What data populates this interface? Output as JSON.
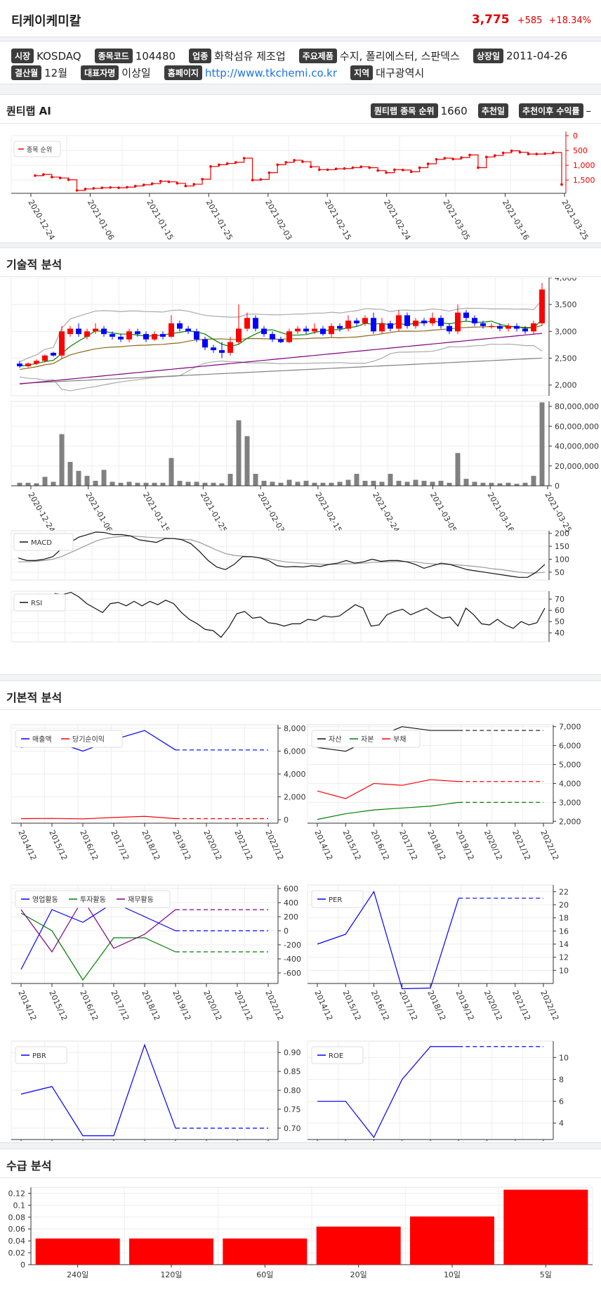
{
  "company": {
    "name": "티케이케미칼",
    "price": "3,775",
    "change": "+585",
    "change_pct": "+18.34%"
  },
  "info": {
    "market_label": "시장",
    "market": "KOSDAQ",
    "code_label": "종목코드",
    "code": "104480",
    "industry_label": "업종",
    "industry": "화학섬유 제조업",
    "products_label": "주요제품",
    "products": "수지, 폴리에스터, 스판덱스",
    "listed_label": "상장일",
    "listed": "2011-04-26",
    "fiscal_label": "결산월",
    "fiscal": "12월",
    "ceo_label": "대표자명",
    "ceo": "이상일",
    "homepage_label": "홈페이지",
    "homepage": "http://www.tkchemi.co.kr",
    "region_label": "지역",
    "region": "대구광역시"
  },
  "ai": {
    "title": "퀀티랩 AI",
    "rank_label": "퀀티랩 종목 순위",
    "rank": "1660",
    "rec_date_label": "추천일",
    "return_label": "추천이후 수익률",
    "return": "–"
  },
  "sections": {
    "tech": "기술적 분석",
    "fund": "기본적 분석",
    "supply": "수급 분석"
  },
  "colors": {
    "up": "#ff0000",
    "down": "#0000ff",
    "ma5": "#008000",
    "ma20": "#8b6914",
    "ma60": "#800080",
    "ma120": "#808080",
    "bars": "#808080"
  },
  "date_ticks": [
    "2020-12-24",
    "2021-01-06",
    "2021-01-15",
    "2021-01-25",
    "2021-02-03",
    "2021-02-15",
    "2021-02-24",
    "2021-03-05",
    "2021-03-16",
    "2021-03-25"
  ],
  "chart_data": [
    {
      "type": "line",
      "legend": "종목 순위",
      "y_ticks": [
        "0",
        "500",
        "1,000",
        "1,500"
      ],
      "ylim": [
        0,
        1900
      ],
      "inverted": true,
      "values": [
        1350,
        1310,
        1400,
        1430,
        1490,
        1850,
        1800,
        1780,
        1760,
        1750,
        1760,
        1740,
        1700,
        1660,
        1620,
        1540,
        1560,
        1610,
        1700,
        1640,
        1470,
        1040,
        980,
        940,
        900,
        760,
        1500,
        1480,
        1250,
        980,
        900,
        830,
        880,
        1050,
        1150,
        1150,
        1120,
        1110,
        1080,
        1050,
        1080,
        1180,
        1250,
        1150,
        1160,
        1220,
        1080,
        950,
        800,
        760,
        790,
        740,
        650,
        1080,
        720,
        670,
        580,
        510,
        560,
        620,
        620,
        610,
        570,
        1650
      ]
    },
    {
      "type": "candlestick",
      "y_ticks": [
        "4,000",
        "3,500",
        "3,000",
        "2,500",
        "2,000"
      ],
      "ylim": [
        1800,
        4000
      ],
      "candles": [
        [
          2400,
          2350,
          2450,
          2320
        ],
        [
          2350,
          2400,
          2420,
          2330
        ],
        [
          2400,
          2450,
          2480,
          2370
        ],
        [
          2450,
          2550,
          2570,
          2420
        ],
        [
          2600,
          2550,
          2620,
          2530
        ],
        [
          2550,
          3000,
          3100,
          2500
        ],
        [
          2950,
          3050,
          3100,
          2900
        ],
        [
          3050,
          2950,
          3150,
          2900
        ],
        [
          2900,
          3000,
          3050,
          2850
        ],
        [
          3000,
          3050,
          3150,
          2950
        ],
        [
          3050,
          2950,
          3100,
          2900
        ],
        [
          2950,
          2900,
          3000,
          2850
        ],
        [
          2900,
          2850,
          2950,
          2800
        ],
        [
          2850,
          3000,
          3050,
          2800
        ],
        [
          3000,
          2950,
          3050,
          2900
        ],
        [
          2950,
          2850,
          3000,
          2800
        ],
        [
          2850,
          2950,
          3000,
          2820
        ],
        [
          2950,
          2900,
          3000,
          2850
        ],
        [
          2900,
          3150,
          3300,
          2880
        ],
        [
          3150,
          3050,
          3200,
          3000
        ],
        [
          3050,
          3000,
          3100,
          2950
        ],
        [
          3000,
          2850,
          3050,
          2800
        ],
        [
          2850,
          2700,
          2900,
          2650
        ],
        [
          2700,
          2650,
          2750,
          2600
        ],
        [
          2650,
          2600,
          2800,
          2500
        ],
        [
          2600,
          2800,
          2900,
          2550
        ],
        [
          2800,
          3050,
          3500,
          2750
        ],
        [
          3050,
          3250,
          3350,
          3000
        ],
        [
          3250,
          3050,
          3300,
          3000
        ],
        [
          3050,
          2950,
          3100,
          2900
        ],
        [
          2950,
          2850,
          3000,
          2800
        ],
        [
          2850,
          2800,
          2900,
          2780
        ],
        [
          2800,
          3000,
          3050,
          2780
        ],
        [
          3000,
          3050,
          3100,
          2950
        ],
        [
          3050,
          3000,
          3100,
          2950
        ],
        [
          3000,
          3050,
          3150,
          2950
        ],
        [
          3050,
          2950,
          3100,
          2920
        ],
        [
          2950,
          3100,
          3150,
          2900
        ],
        [
          3100,
          3050,
          3150,
          3000
        ],
        [
          3050,
          3200,
          3300,
          3000
        ],
        [
          3200,
          3150,
          3250,
          3100
        ],
        [
          3150,
          3250,
          3300,
          3100
        ],
        [
          3250,
          3000,
          3350,
          2950
        ],
        [
          3000,
          3150,
          3250,
          2950
        ],
        [
          3150,
          3050,
          3200,
          3000
        ],
        [
          3050,
          3300,
          3400,
          3000
        ],
        [
          3300,
          3100,
          3350,
          3050
        ],
        [
          3100,
          3200,
          3250,
          3050
        ],
        [
          3200,
          3150,
          3250,
          3100
        ],
        [
          3150,
          3250,
          3350,
          3100
        ],
        [
          3250,
          3100,
          3300,
          3050
        ],
        [
          3100,
          3000,
          3150,
          2950
        ],
        [
          3000,
          3350,
          3500,
          2950
        ],
        [
          3350,
          3250,
          3400,
          3200
        ],
        [
          3250,
          3150,
          3300,
          3100
        ],
        [
          3150,
          3100,
          3200,
          3050
        ],
        [
          3100,
          3100,
          3150,
          3050
        ],
        [
          3100,
          3050,
          3150,
          3000
        ],
        [
          3050,
          3100,
          3150,
          3000
        ],
        [
          3100,
          3050,
          3150,
          3000
        ],
        [
          3050,
          3000,
          3100,
          2950
        ],
        [
          3000,
          3150,
          3200,
          2950
        ],
        [
          3150,
          3780,
          3900,
          3100
        ]
      ]
    },
    {
      "type": "bar",
      "y_ticks": [
        "80,000,000",
        "60,000,000",
        "40,000,000",
        "20,000,000",
        "0"
      ],
      "ylim": [
        0,
        85000000
      ],
      "values": [
        3000000,
        3000000,
        2500000,
        9000000,
        4000000,
        52000000,
        24000000,
        15000000,
        10000000,
        5000000,
        16000000,
        4000000,
        3000000,
        4000000,
        3000000,
        3000000,
        3000000,
        3000000,
        28000000,
        5000000,
        4000000,
        4000000,
        3000000,
        3000000,
        2500000,
        12000000,
        66000000,
        50000000,
        12000000,
        5000000,
        4000000,
        3000000,
        6000000,
        4000000,
        5000000,
        3000000,
        3000000,
        3000000,
        4000000,
        6000000,
        12000000,
        5000000,
        5000000,
        4000000,
        12000000,
        5000000,
        4000000,
        6000000,
        5000000,
        4000000,
        5000000,
        3000000,
        33000000,
        7000000,
        4000000,
        3000000,
        3000000,
        2500000,
        3000000,
        2000000,
        3000000,
        10000000,
        84000000
      ]
    },
    {
      "type": "line",
      "legend": "MACD",
      "y_ticks": [
        "200",
        "150",
        "100",
        "50"
      ],
      "ylim": [
        20,
        210
      ],
      "macd": [
        105,
        95,
        95,
        100,
        110,
        140,
        165,
        185,
        195,
        205,
        203,
        195,
        195,
        190,
        175,
        170,
        165,
        180,
        180,
        175,
        160,
        130,
        95,
        70,
        60,
        80,
        110,
        110,
        105,
        95,
        75,
        70,
        72,
        70,
        75,
        72,
        80,
        85,
        95,
        85,
        90,
        100,
        92,
        95,
        95,
        90,
        80,
        65,
        75,
        85,
        80,
        70,
        60,
        55,
        50,
        45,
        40,
        35,
        30,
        30,
        50,
        80
      ],
      "signal": [
        90,
        90,
        92,
        95,
        100,
        110,
        125,
        140,
        155,
        170,
        180,
        185,
        188,
        190,
        188,
        185,
        183,
        182,
        180,
        177,
        175,
        165,
        150,
        135,
        122,
        115,
        112,
        110,
        105,
        102,
        95,
        90,
        87,
        85,
        83,
        81,
        80,
        81,
        82,
        83,
        85,
        88,
        89,
        90,
        91,
        91,
        90,
        85,
        82,
        80,
        80,
        78,
        75,
        72,
        68,
        63,
        60,
        55,
        50,
        47,
        47,
        50
      ]
    },
    {
      "type": "line",
      "legend": "RSI",
      "y_ticks": [
        "70",
        "60",
        "50",
        "40"
      ],
      "ylim": [
        32,
        77
      ],
      "values": [
        70,
        70,
        75,
        74,
        76,
        72,
        66,
        62,
        58,
        66,
        67,
        64,
        68,
        64,
        68,
        65,
        69,
        66,
        58,
        52,
        48,
        43,
        42,
        36,
        45,
        57,
        59,
        53,
        54,
        49,
        48,
        46,
        48,
        48,
        52,
        51,
        55,
        54,
        55,
        60,
        65,
        62,
        46,
        47,
        56,
        59,
        61,
        56,
        59,
        62,
        57,
        53,
        54,
        46,
        62,
        56,
        48,
        47,
        52,
        47,
        44,
        50,
        47,
        49,
        62
      ]
    },
    {
      "type": "line",
      "legend_items": [
        "매출액",
        "당기순이익"
      ],
      "categories": [
        "2014/12",
        "2015/12",
        "2016/12",
        "2017/12",
        "2018/12",
        "2019/12",
        "2020/12",
        "2021/12",
        "2022/12"
      ],
      "y_ticks": [
        "8,000",
        "6,000",
        "4,000",
        "2,000",
        "0"
      ],
      "ylim": [
        -300,
        8300
      ],
      "series": [
        {
          "name": "매출액",
          "values": [
            6300,
            6900,
            6000,
            7000,
            7800,
            6100,
            6100,
            6100,
            6100
          ]
        },
        {
          "name": "당기순이익",
          "values": [
            100,
            120,
            80,
            200,
            300,
            100,
            100,
            100,
            100
          ]
        }
      ]
    },
    {
      "type": "line",
      "legend_items": [
        "자산",
        "자본",
        "부채"
      ],
      "categories": [
        "2014/12",
        "2015/12",
        "2016/12",
        "2017/12",
        "2018/12",
        "2019/12",
        "2020/12",
        "2021/12",
        "2022/12"
      ],
      "y_ticks": [
        "7,000",
        "6,000",
        "5,000",
        "4,000",
        "3,000",
        "2,000"
      ],
      "ylim": [
        1900,
        7100
      ],
      "series": [
        {
          "name": "자산",
          "values": [
            5900,
            5700,
            6400,
            7000,
            6800,
            6800,
            6800,
            6800,
            6800
          ]
        },
        {
          "name": "자본",
          "values": [
            2100,
            2400,
            2600,
            2700,
            2800,
            3000,
            3000,
            3000,
            3000
          ]
        },
        {
          "name": "부채",
          "values": [
            3600,
            3200,
            4000,
            3900,
            4200,
            4100,
            4100,
            4100,
            4100
          ]
        }
      ]
    },
    {
      "type": "line",
      "legend_items": [
        "영업활동",
        "투자활동",
        "재무활동"
      ],
      "categories": [
        "2014/12",
        "2015/12",
        "2016/12",
        "2017/12",
        "2018/12",
        "2019/12",
        "2020/12",
        "2021/12",
        "2022/12"
      ],
      "y_ticks": [
        "600",
        "400",
        "200",
        "0",
        "-200",
        "-400",
        "-600"
      ],
      "ylim": [
        -750,
        650
      ],
      "series": [
        {
          "name": "영업활동",
          "values": [
            -550,
            300,
            120,
            400,
            200,
            0,
            0,
            0,
            0
          ]
        },
        {
          "name": "투자활동",
          "values": [
            250,
            0,
            -700,
            -100,
            -100,
            -300,
            -300,
            -300,
            -300
          ]
        },
        {
          "name": "재무활동",
          "values": [
            300,
            -300,
            450,
            -250,
            -50,
            300,
            300,
            300,
            300
          ]
        }
      ]
    },
    {
      "type": "line",
      "legend": "PER",
      "categories": [
        "2014/12",
        "2015/12",
        "2016/12",
        "2017/12",
        "2018/12",
        "2019/12",
        "2020/12",
        "2021/12",
        "2022/12"
      ],
      "y_ticks": [
        "22",
        "20",
        "18",
        "16",
        "14",
        "12",
        "10"
      ],
      "ylim": [
        8,
        23
      ],
      "values": [
        14,
        15.5,
        22,
        7.2,
        7.3,
        21,
        21,
        21,
        21
      ]
    },
    {
      "type": "line",
      "legend": "PBR",
      "categories": [
        "2014/12",
        "2015/12",
        "2016/12",
        "2017/12",
        "2018/12",
        "2019/12",
        "2020/12",
        "2021/12",
        "2022/12"
      ],
      "y_ticks": [
        "0.90",
        "0.85",
        "0.80",
        "0.75",
        "0.70"
      ],
      "ylim": [
        0.67,
        0.93
      ],
      "values": [
        0.79,
        0.81,
        0.68,
        0.68,
        0.92,
        0.7,
        0.7,
        0.7,
        0.7
      ]
    },
    {
      "type": "line",
      "legend": "ROE",
      "categories": [
        "2014/12",
        "2015/12",
        "2016/12",
        "2017/12",
        "2018/12",
        "2019/12",
        "2020/12",
        "2021/12",
        "2022/12"
      ],
      "y_ticks": [
        "10",
        "8",
        "6",
        "4"
      ],
      "ylim": [
        2.5,
        11.5
      ],
      "values": [
        6,
        6,
        2.7,
        8,
        11,
        11,
        11,
        11,
        11
      ]
    },
    {
      "type": "bar",
      "categories": [
        "240일",
        "120일",
        "60일",
        "20일",
        "10일",
        "5일"
      ],
      "y_ticks": [
        "0.12",
        "0.1",
        "0.08",
        "0.06",
        "0.04",
        "0.02",
        "0"
      ],
      "ylim": [
        0,
        0.13
      ],
      "values": [
        0.044,
        0.044,
        0.044,
        0.064,
        0.081,
        0.126
      ]
    }
  ]
}
